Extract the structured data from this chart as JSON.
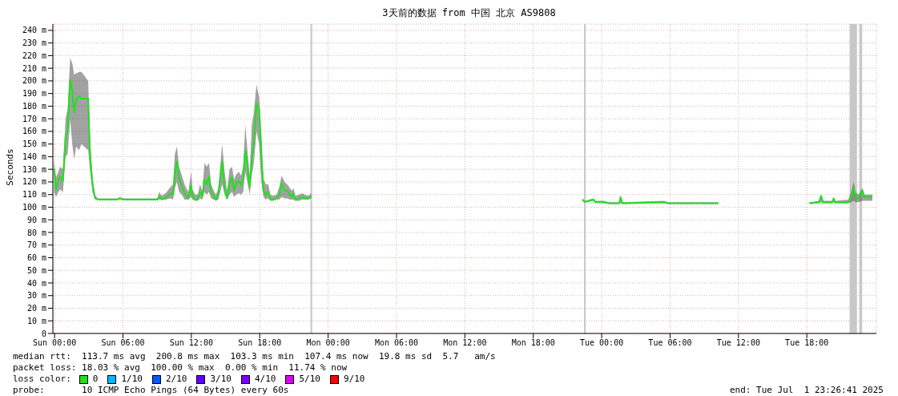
{
  "chart_data": {
    "type": "line",
    "title": "3天前的数据 from 中国 北京 AS9808",
    "ylabel": "Seconds",
    "legend_title": "loss color:",
    "legend": "bottom",
    "grid": true,
    "marker": "none",
    "line_style": "solid",
    "x": [
      "2025-06-28T23:57",
      "2025-06-29T00:08",
      "2025-06-29T00:20",
      "2025-06-29T00:29",
      "2025-06-29T00:44",
      "2025-06-29T00:58",
      "2025-06-29T01:09",
      "2025-06-29T01:22",
      "2025-06-29T01:33",
      "2025-06-29T01:43",
      "2025-06-29T01:54",
      "2025-06-29T02:08",
      "2025-06-29T02:22",
      "2025-06-29T02:57",
      "2025-06-29T03:07",
      "2025-06-29T03:19",
      "2025-06-29T03:32",
      "2025-06-29T03:47",
      "2025-06-29T05:32",
      "2025-06-29T05:43",
      "2025-06-29T06:00",
      "2025-06-29T09:03",
      "2025-06-29T09:10",
      "2025-06-29T09:24",
      "2025-06-29T09:45",
      "2025-06-29T10:10",
      "2025-06-29T10:24",
      "2025-06-29T10:33",
      "2025-06-29T10:44",
      "2025-06-29T10:55",
      "2025-06-29T11:10",
      "2025-06-29T11:24",
      "2025-06-29T11:44",
      "2025-06-29T11:59",
      "2025-06-29T12:06",
      "2025-06-29T12:20",
      "2025-06-29T12:34",
      "2025-06-29T12:45",
      "2025-06-29T12:58",
      "2025-06-29T13:09",
      "2025-06-29T13:20",
      "2025-06-29T13:33",
      "2025-06-29T13:44",
      "2025-06-29T13:58",
      "2025-06-29T14:10",
      "2025-06-29T14:22",
      "2025-06-29T14:42",
      "2025-06-29T14:55",
      "2025-06-29T15:08",
      "2025-06-29T15:21",
      "2025-06-29T15:34",
      "2025-06-29T15:45",
      "2025-06-29T15:56",
      "2025-06-29T16:09",
      "2025-06-29T16:22",
      "2025-06-29T16:33",
      "2025-06-29T16:44",
      "2025-06-29T16:57",
      "2025-06-29T17:07",
      "2025-06-29T17:18",
      "2025-06-29T17:29",
      "2025-06-29T17:43",
      "2025-06-29T17:57",
      "2025-06-29T18:08",
      "2025-06-29T18:20",
      "2025-06-29T18:32",
      "2025-06-29T18:45",
      "2025-06-29T18:56",
      "2025-06-29T19:11",
      "2025-06-29T19:29",
      "2025-06-29T19:43",
      "2025-06-29T19:55",
      "2025-06-29T20:11",
      "2025-06-29T20:25",
      "2025-06-29T20:39",
      "2025-06-29T20:49",
      "2025-06-29T20:58",
      "2025-06-29T21:07",
      "2025-06-29T21:28",
      "2025-06-29T21:43",
      "2025-06-29T21:56",
      "2025-06-29T22:17",
      "2025-06-29T22:31",
      "2025-06-29T23:00",
      "2025-06-30T22:19",
      "2025-06-30T22:31",
      "2025-06-30T23:16",
      "2025-06-30T23:27",
      "2025-07-01T00:12",
      "2025-07-01T00:40",
      "2025-07-01T01:33",
      "2025-07-01T01:39",
      "2025-07-01T01:50",
      "2025-07-01T05:28",
      "2025-07-01T05:49",
      "2025-07-01T10:14",
      "2025-07-01T12:00",
      "2025-07-01T18:14",
      "2025-07-01T19:04",
      "2025-07-01T19:15",
      "2025-07-01T19:25",
      "2025-07-01T20:14",
      "2025-07-01T20:21",
      "2025-07-01T20:28",
      "2025-07-01T21:38",
      "2025-07-01T21:53",
      "2025-07-01T22:07",
      "2025-07-01T22:16",
      "2025-07-01T22:31",
      "2025-07-01T22:53",
      "2025-07-01T23:03",
      "2025-07-01T23:45"
    ],
    "series": [
      {
        "name": "0",
        "color": "#20e020",
        "values": [
          130,
          114,
          121,
          124,
          121,
          156,
          160,
          201,
          192,
          175,
          185,
          188,
          186,
          186,
          141,
          119,
          108,
          106,
          106,
          107,
          106,
          106,
          109,
          106,
          107,
          111,
          110,
          127,
          136,
          123,
          117,
          111,
          107,
          117,
          109,
          106,
          106,
          112,
          109,
          122,
          118,
          124,
          111,
          109,
          106,
          110,
          136,
          116,
          107,
          119,
          124,
          113,
          119,
          121,
          117,
          123,
          145,
          130,
          116,
          138,
          150,
          182,
          177,
          141,
          113,
          110,
          112,
          106,
          106,
          107,
          110,
          119,
          113,
          113,
          110,
          108,
          111,
          106,
          107,
          108,
          107,
          107,
          109,
          null,
          106,
          104,
          106,
          104,
          104,
          103,
          103,
          108,
          103,
          104,
          103,
          103,
          null,
          103,
          104,
          109,
          104,
          104,
          107,
          104,
          104,
          107,
          115,
          109,
          107,
          113,
          108,
          108
        ],
        "lower": [
          112,
          108,
          112,
          114,
          112,
          140,
          142,
          170,
          150,
          138,
          148,
          145,
          150,
          145,
          128,
          112,
          106,
          106,
          106,
          106,
          106,
          106,
          106,
          106,
          106,
          107,
          106,
          115,
          120,
          112,
          110,
          106,
          106,
          108,
          106,
          105,
          105,
          107,
          106,
          112,
          110,
          112,
          107,
          106,
          105,
          106,
          118,
          110,
          106,
          110,
          112,
          108,
          110,
          111,
          110,
          112,
          128,
          118,
          110,
          125,
          135,
          160,
          150,
          120,
          108,
          106,
          107,
          105,
          105,
          106,
          106,
          108,
          107,
          107,
          106,
          106,
          106,
          105,
          105,
          106,
          106,
          106,
          107,
          null,
          105,
          104,
          105,
          104,
          103,
          103,
          103,
          103,
          103,
          103,
          103,
          103,
          null,
          103,
          103,
          104,
          103,
          103,
          104,
          103,
          103,
          104,
          105,
          104,
          104,
          105,
          105,
          105
        ],
        "upper": [
          136,
          124,
          128,
          132,
          130,
          170,
          178,
          218,
          214,
          205,
          206,
          207,
          207,
          200,
          152,
          125,
          110,
          107,
          107,
          108,
          107,
          107,
          112,
          109,
          111,
          116,
          118,
          142,
          148,
          132,
          125,
          118,
          112,
          128,
          114,
          110,
          110,
          118,
          113,
          135,
          132,
          135,
          118,
          113,
          110,
          115,
          150,
          128,
          113,
          130,
          132,
          122,
          126,
          128,
          125,
          133,
          165,
          142,
          125,
          165,
          175,
          197,
          187,
          160,
          122,
          118,
          118,
          110,
          109,
          110,
          116,
          125,
          120,
          118,
          115,
          113,
          115,
          109,
          110,
          111,
          110,
          109,
          111,
          null,
          107,
          105,
          107,
          105,
          105,
          104,
          104,
          108,
          104,
          105,
          104,
          104,
          null,
          104,
          105,
          110,
          105,
          105,
          108,
          105,
          106,
          112,
          120,
          112,
          110,
          115,
          110,
          110
        ]
      },
      {
        "name": "1/10",
        "color": "#00b8ff",
        "values": [
          null,
          null,
          null,
          null,
          null,
          null,
          null,
          null,
          null,
          null,
          null,
          null,
          null,
          null,
          null,
          null,
          null,
          null,
          null,
          null,
          null,
          null,
          null,
          null,
          null,
          null,
          null,
          null,
          null,
          null,
          null,
          null,
          null,
          null,
          null,
          null,
          null,
          null,
          null,
          null,
          null,
          null,
          null,
          null,
          null,
          null,
          null,
          null,
          null,
          null,
          null,
          null,
          null,
          null,
          null,
          null,
          null,
          null,
          null,
          null,
          null,
          null,
          null,
          null,
          null,
          null,
          null,
          null,
          null,
          null,
          null,
          null,
          null,
          null,
          null,
          null,
          null,
          null,
          null,
          null,
          null,
          null,
          null,
          null,
          null,
          null,
          null,
          null,
          null,
          null,
          null,
          null,
          null,
          null,
          null,
          null,
          null,
          null,
          null,
          null,
          null,
          null,
          null,
          null,
          null,
          null,
          null,
          null,
          null,
          null,
          null,
          null
        ]
      },
      {
        "name": "2/10",
        "color": "#0059ff",
        "values": [
          null,
          null,
          null,
          null,
          null,
          null,
          null,
          null,
          null,
          null,
          null,
          null,
          null,
          null,
          null,
          null,
          null,
          null,
          null,
          null,
          null,
          null,
          null,
          null,
          null,
          null,
          null,
          null,
          null,
          null,
          null,
          null,
          null,
          null,
          null,
          null,
          null,
          null,
          null,
          null,
          null,
          null,
          null,
          null,
          null,
          null,
          null,
          null,
          null,
          null,
          null,
          null,
          null,
          null,
          null,
          null,
          null,
          null,
          null,
          null,
          null,
          null,
          null,
          null,
          null,
          null,
          null,
          null,
          null,
          null,
          null,
          null,
          null,
          null,
          null,
          null,
          null,
          null,
          null,
          null,
          null,
          null,
          null,
          null,
          null,
          null,
          null,
          null,
          null,
          null,
          null,
          null,
          null,
          null,
          null,
          null,
          null,
          null,
          null,
          null,
          null,
          null,
          null,
          null,
          null,
          null,
          null,
          null,
          null,
          null,
          null,
          null
        ]
      },
      {
        "name": "3/10",
        "color": "#5e00ff",
        "values": [
          null,
          null,
          null,
          null,
          null,
          null,
          null,
          null,
          null,
          null,
          null,
          null,
          null,
          null,
          null,
          null,
          null,
          null,
          null,
          null,
          null,
          null,
          null,
          null,
          null,
          null,
          null,
          null,
          null,
          null,
          null,
          null,
          null,
          null,
          null,
          null,
          null,
          null,
          null,
          null,
          null,
          null,
          null,
          null,
          null,
          null,
          null,
          null,
          null,
          null,
          null,
          null,
          null,
          null,
          null,
          null,
          null,
          null,
          null,
          null,
          null,
          null,
          null,
          null,
          null,
          null,
          null,
          null,
          null,
          null,
          null,
          null,
          null,
          null,
          null,
          null,
          null,
          null,
          null,
          null,
          null,
          null,
          null,
          null,
          null,
          null,
          null,
          null,
          null,
          null,
          null,
          null,
          null,
          null,
          null,
          null,
          null,
          null,
          null,
          null,
          null,
          null,
          null,
          null,
          null,
          null,
          null,
          null,
          null,
          null,
          null,
          null
        ]
      },
      {
        "name": "4/10",
        "color": "#7e00ff",
        "values": [
          null,
          null,
          null,
          null,
          null,
          null,
          null,
          null,
          null,
          null,
          null,
          null,
          null,
          null,
          null,
          null,
          null,
          null,
          null,
          null,
          null,
          null,
          null,
          null,
          null,
          null,
          null,
          null,
          null,
          null,
          null,
          null,
          null,
          null,
          null,
          null,
          null,
          null,
          null,
          null,
          null,
          null,
          null,
          null,
          null,
          null,
          null,
          null,
          null,
          null,
          null,
          null,
          null,
          null,
          null,
          null,
          null,
          null,
          null,
          null,
          null,
          null,
          null,
          null,
          null,
          null,
          null,
          null,
          null,
          null,
          null,
          null,
          null,
          null,
          null,
          null,
          null,
          null,
          null,
          null,
          null,
          null,
          null,
          null,
          null,
          null,
          null,
          null,
          null,
          null,
          null,
          null,
          null,
          null,
          null,
          null,
          null,
          null,
          null,
          null,
          null,
          null,
          null,
          null,
          null,
          null,
          null,
          null,
          null,
          null,
          null,
          null
        ]
      },
      {
        "name": "5/10",
        "color": "#dd00ff",
        "values": [
          null,
          null,
          null,
          null,
          null,
          null,
          null,
          null,
          null,
          null,
          null,
          null,
          null,
          null,
          null,
          null,
          null,
          null,
          null,
          null,
          null,
          null,
          null,
          null,
          null,
          null,
          null,
          null,
          null,
          null,
          null,
          null,
          null,
          null,
          null,
          null,
          null,
          null,
          null,
          null,
          null,
          null,
          null,
          null,
          null,
          null,
          null,
          null,
          null,
          null,
          null,
          null,
          null,
          null,
          null,
          null,
          null,
          null,
          null,
          null,
          null,
          null,
          null,
          null,
          null,
          null,
          null,
          null,
          null,
          null,
          null,
          null,
          null,
          null,
          null,
          null,
          null,
          null,
          null,
          null,
          null,
          null,
          null,
          null,
          null,
          null,
          null,
          null,
          null,
          null,
          null,
          null,
          null,
          null,
          null,
          null,
          null,
          null,
          null,
          null,
          null,
          null,
          null,
          null,
          null,
          null,
          null,
          null,
          null,
          null,
          null,
          null
        ]
      },
      {
        "name": "9/10",
        "color": "#ff0000",
        "values": [
          null,
          null,
          null,
          null,
          null,
          null,
          null,
          null,
          null,
          null,
          null,
          null,
          null,
          null,
          null,
          null,
          null,
          null,
          null,
          null,
          null,
          null,
          null,
          null,
          null,
          null,
          null,
          null,
          null,
          null,
          null,
          null,
          null,
          null,
          null,
          null,
          null,
          null,
          null,
          null,
          null,
          null,
          null,
          null,
          null,
          null,
          null,
          null,
          null,
          null,
          null,
          null,
          null,
          null,
          null,
          null,
          null,
          null,
          null,
          null,
          null,
          null,
          null,
          null,
          null,
          null,
          null,
          null,
          null,
          null,
          null,
          null,
          null,
          null,
          null,
          null,
          null,
          null,
          null,
          null,
          null,
          null,
          null,
          null,
          null,
          null,
          null,
          null,
          null,
          null,
          null,
          null,
          null,
          null,
          null,
          null,
          null,
          null,
          null,
          null,
          null,
          null,
          null,
          null,
          null,
          null,
          null,
          null,
          null,
          null,
          null,
          null
        ]
      }
    ],
    "bands": [
      {
        "axis": "x",
        "from": "2025-06-29T22:27",
        "to": "2025-06-29T22:36",
        "color": "#c8c8c8"
      },
      {
        "axis": "x",
        "from": "2025-06-30T22:27",
        "to": "2025-06-30T22:36",
        "color": "#c8c8c8"
      },
      {
        "axis": "x",
        "from": "2025-07-01T21:45",
        "to": "2025-07-01T22:24",
        "color": "#c8c8c8"
      },
      {
        "axis": "x",
        "from": "2025-07-01T22:36",
        "to": "2025-07-01T22:51",
        "color": "#c8c8c8"
      }
    ],
    "xlim": [
      "2025-06-28T23:51",
      "2025-07-02T00:06"
    ],
    "xticks": [
      {
        "value": "2025-06-29T00:00",
        "label": "Sun 00:00"
      },
      {
        "value": "2025-06-29T06:00",
        "label": "Sun 06:00"
      },
      {
        "value": "2025-06-29T12:00",
        "label": "Sun 12:00"
      },
      {
        "value": "2025-06-29T18:00",
        "label": "Sun 18:00"
      },
      {
        "value": "2025-06-30T00:00",
        "label": "Mon 00:00"
      },
      {
        "value": "2025-06-30T06:00",
        "label": "Mon 06:00"
      },
      {
        "value": "2025-06-30T12:00",
        "label": "Mon 12:00"
      },
      {
        "value": "2025-06-30T18:00",
        "label": "Mon 18:00"
      },
      {
        "value": "2025-07-01T00:00",
        "label": "Tue 00:00"
      },
      {
        "value": "2025-07-01T06:00",
        "label": "Tue 06:00"
      },
      {
        "value": "2025-07-01T12:00",
        "label": "Tue 12:00"
      },
      {
        "value": "2025-07-01T18:00",
        "label": "Tue 18:00"
      }
    ],
    "ylim": [
      0,
      245
    ],
    "yticks": [
      0,
      {
        "value": 10,
        "label": "10 m"
      },
      {
        "value": 20,
        "label": "20 m"
      },
      {
        "value": 30,
        "label": "30 m"
      },
      {
        "value": 40,
        "label": "40 m"
      },
      {
        "value": 50,
        "label": "50 m"
      },
      {
        "value": 60,
        "label": "60 m"
      },
      {
        "value": 70,
        "label": "70 m"
      },
      {
        "value": 80,
        "label": "80 m"
      },
      {
        "value": 90,
        "label": "90 m"
      },
      {
        "value": 100,
        "label": "100 m"
      },
      {
        "value": 110,
        "label": "110 m"
      },
      {
        "value": 120,
        "label": "120 m"
      },
      {
        "value": 130,
        "label": "130 m"
      },
      {
        "value": 140,
        "label": "140 m"
      },
      {
        "value": 150,
        "label": "150 m"
      },
      {
        "value": 160,
        "label": "160 m"
      },
      {
        "value": 170,
        "label": "170 m"
      },
      {
        "value": 180,
        "label": "180 m"
      },
      {
        "value": 190,
        "label": "190 m"
      },
      {
        "value": 200,
        "label": "200 m"
      },
      {
        "value": 210,
        "label": "210 m"
      },
      {
        "value": 220,
        "label": "220 m"
      },
      {
        "value": 230,
        "label": "230 m"
      },
      {
        "value": 240,
        "label": "240 m"
      }
    ],
    "annotations": [
      "median rtt:  113.7 ms avg  200.8 ms max  103.3 ms min  107.4 ms now  19.8 ms sd  5.7   am/s",
      "packet loss: 18.03 % avg  100.00 % max  0.00 % min  11.74 % now",
      "probe:       10 ICMP Echo Pings (64 Bytes) every 60s",
      "end: Tue Jul  1 23:26:41 2025"
    ]
  }
}
